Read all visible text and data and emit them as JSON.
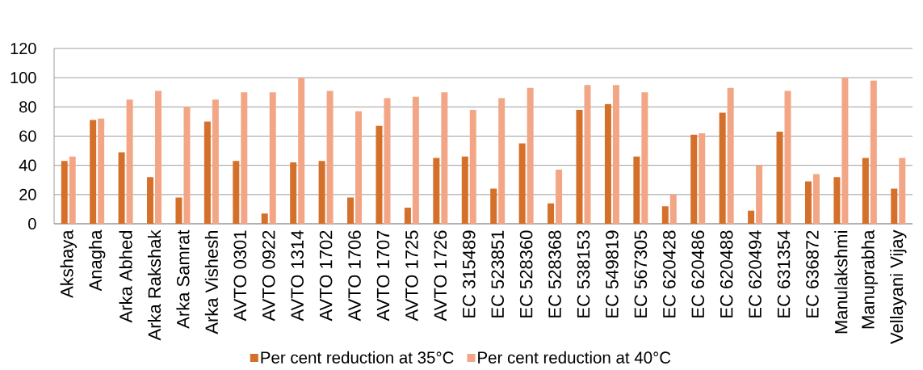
{
  "chart_data": {
    "type": "bar",
    "categories": [
      "Akshaya",
      "Anagha",
      "Arka Abhed",
      "Arka Rakshak",
      "Arka Samrat",
      "Arka Vishesh",
      "AVTO 0301",
      "AVTO 0922",
      "AVTO 1314",
      "AVTO 1702",
      "AVTO 1706",
      "AVTO 1707",
      "AVTO 1725",
      "AVTO 1726",
      "EC 315489",
      "EC 523851",
      "EC 528360",
      "EC 528368",
      "EC 538153",
      "EC 549819",
      "EC 567305",
      "EC 620428",
      "EC 620486",
      "EC 620488",
      "EC 620494",
      "EC 631354",
      "EC 636872",
      "Manulakshmi",
      "Manuprabha",
      "Vellayani Vijay"
    ],
    "series": [
      {
        "name": "Per cent reduction at 35°C",
        "color": "#d5702b",
        "values": [
          43,
          71,
          49,
          32,
          18,
          70,
          43,
          7,
          42,
          43,
          18,
          67,
          11,
          45,
          46,
          24,
          55,
          14,
          78,
          82,
          46,
          12,
          61,
          76,
          9,
          63,
          29,
          32,
          45,
          24
        ]
      },
      {
        "name": "Per cent reduction at 40°C",
        "color": "#f2a686",
        "values": [
          46,
          72,
          85,
          91,
          80,
          85,
          90,
          90,
          100,
          91,
          77,
          86,
          87,
          90,
          78,
          86,
          93,
          37,
          95,
          95,
          90,
          20,
          62,
          93,
          40,
          91,
          34,
          100,
          98,
          45
        ]
      }
    ],
    "ylim": [
      0,
      120
    ],
    "yticks": [
      0,
      20,
      40,
      60,
      80,
      100,
      120
    ],
    "grid": "y",
    "legend": "bottom"
  }
}
